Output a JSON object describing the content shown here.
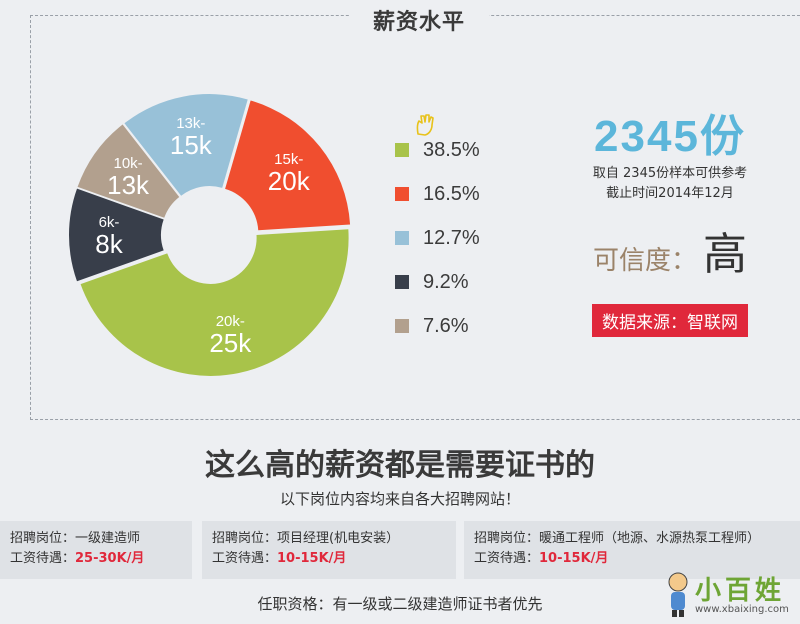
{
  "header": {
    "title": "薪资水平"
  },
  "chart_data": {
    "type": "pie",
    "categories": [
      "20k-25k",
      "15k-20k",
      "13k-15k",
      "10k-13k",
      "6k-8k"
    ],
    "slices": [
      {
        "line1": "20k-",
        "line2": "25k",
        "value": 38.5,
        "pct_label": "38.5%",
        "color": "#a8c34a"
      },
      {
        "line1": "15k-",
        "line2": "20k",
        "value": 16.5,
        "pct_label": "16.5%",
        "color": "#f04e2f"
      },
      {
        "line1": "13k-",
        "line2": "15k",
        "value": 12.7,
        "pct_label": "12.7%",
        "color": "#98c1d8"
      },
      {
        "line1": "6k-",
        "line2": "8k",
        "value": 9.2,
        "pct_label": "9.2%",
        "color": "#383e4a"
      },
      {
        "line1": "10k-",
        "line2": "13k",
        "value": 7.6,
        "pct_label": "7.6%",
        "color": "#b2a08e"
      }
    ]
  },
  "stats": {
    "count": "2345份",
    "sample_note": "取自 2345份样本可供参考",
    "cutoff_note": "截止时间2014年12月",
    "credibility_label": "可信度：",
    "credibility_value": "高",
    "source": "数据来源：智联网"
  },
  "headline": "这么高的薪资都是需要证书的",
  "subline": "以下岗位内容均来自各大招聘网站！",
  "jobs": [
    {
      "position": "招聘岗位：一级建造师",
      "salary_label": "工资待遇：",
      "salary": "25-30K/月"
    },
    {
      "position": "招聘岗位：项目经理(机电安装）",
      "salary_label": "工资待遇：",
      "salary": "10-15K/月"
    },
    {
      "position": "招聘岗位：暖通工程师（地源、水源热泵工程师）",
      "salary_label": "工资待遇：",
      "salary": "10-15K/月"
    }
  ],
  "requirement": "任职资格：有一级或二级建造师证书者优先",
  "watermark": {
    "text": "小百姓",
    "url": "www.xbaixing.com"
  },
  "colors": {
    "accent_blue": "#5cb6da",
    "accent_red": "#e0283b"
  }
}
